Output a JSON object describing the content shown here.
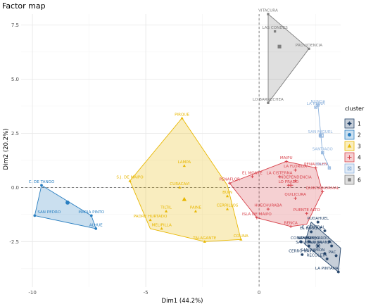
{
  "chart_data": {
    "type": "scatter",
    "title": "Factor map",
    "xlabel": "Dim1 (44.2%)",
    "ylabel": "Dim2 (20.2%)",
    "xlim": [
      -10.5,
      3.6
    ],
    "ylim": [
      -4.6,
      8.0
    ],
    "x_ticks": [
      -10,
      -5,
      0
    ],
    "x_tick_labels": [
      "-10",
      "-5",
      "0"
    ],
    "y_ticks": [
      -2.5,
      0.0,
      2.5,
      5.0,
      7.5
    ],
    "y_tick_labels": [
      "-2.5",
      "0.0",
      "2.5",
      "5.0",
      "7.5"
    ],
    "grid": true,
    "legend": {
      "title": "cluster",
      "position": "right"
    },
    "clusters": [
      {
        "name": "1",
        "color": "#1f3f66",
        "centroid": [
          2.6,
          -2.7
        ],
        "hull": [
          [
            2.3,
            -1.6
          ],
          [
            3.6,
            -2.8
          ],
          [
            3.5,
            -3.9
          ],
          [
            2.0,
            -2.6
          ]
        ],
        "points": [
          {
            "label": "PUDAHUEL",
            "x": 2.6,
            "y": -1.6
          },
          {
            "label": "EL BOSQUE",
            "x": 2.3,
            "y": -2.05
          },
          {
            "label": "E. CENTRAL",
            "x": 2.9,
            "y": -2.0
          },
          {
            "label": "CONCHALI",
            "x": 1.85,
            "y": -2.5
          },
          {
            "label": "LO ESPEJO",
            "x": 2.2,
            "y": -2.5
          },
          {
            "label": "SAN BERNARDO",
            "x": 3.1,
            "y": -2.5
          },
          {
            "label": "SAN JOAQUIN",
            "x": 2.2,
            "y": -2.7
          },
          {
            "label": "LA GRANJA",
            "x": 3.2,
            "y": -2.7
          },
          {
            "label": "CERRO NAVIA",
            "x": 1.9,
            "y": -3.1
          },
          {
            "label": "SAN RAMON",
            "x": 2.9,
            "y": -3.05
          },
          {
            "label": "PAC",
            "x": 3.4,
            "y": -3.15
          },
          {
            "label": "RECOLETA",
            "x": 3.0,
            "y": -3.3
          },
          {
            "label": "LA PINTANA",
            "x": 3.5,
            "y": -3.9
          }
        ]
      },
      {
        "name": "2",
        "color": "#2a7fc1",
        "centroid": [
          -8.45,
          -0.7
        ],
        "hull": [
          [
            -9.6,
            0.1
          ],
          [
            -7.4,
            -1.3
          ],
          [
            -7.2,
            -1.9
          ],
          [
            -9.9,
            -1.3
          ]
        ],
        "points": [
          {
            "label": "C. DE TANGO",
            "x": -9.6,
            "y": 0.1
          },
          {
            "label": "SAN PEDRO",
            "x": -9.9,
            "y": -1.3
          },
          {
            "label": "MARIA PINTO",
            "x": -7.4,
            "y": -1.3
          },
          {
            "label": "ALHUE",
            "x": -7.2,
            "y": -1.9
          }
        ]
      },
      {
        "name": "3",
        "color": "#e8b700",
        "centroid": [
          -3.3,
          -0.55
        ],
        "hull": [
          [
            -3.4,
            3.2
          ],
          [
            -1.4,
            0.1
          ],
          [
            -0.8,
            -2.4
          ],
          [
            -2.4,
            -2.5
          ],
          [
            -4.8,
            -1.9
          ],
          [
            -5.7,
            0.3
          ]
        ],
        "points": [
          {
            "label": "PIRQUE",
            "x": -3.4,
            "y": 3.2
          },
          {
            "label": "LAMPA",
            "x": -3.3,
            "y": 1.0
          },
          {
            "label": "S.J. DE MAIPO",
            "x": -5.7,
            "y": 0.3
          },
          {
            "label": "CURACAVI",
            "x": -3.5,
            "y": 0.0
          },
          {
            "label": "BUIN",
            "x": -1.4,
            "y": -0.4
          },
          {
            "label": "TILTIL",
            "x": -4.1,
            "y": -1.1
          },
          {
            "label": "PAINE",
            "x": -2.8,
            "y": -1.1
          },
          {
            "label": "CERRILLOS",
            "x": -1.4,
            "y": -1.0
          },
          {
            "label": "PADRE HURTADO",
            "x": -4.8,
            "y": -1.5
          },
          {
            "label": "MELIPILLA",
            "x": -4.3,
            "y": -1.9
          },
          {
            "label": "TALAGANTE",
            "x": -2.4,
            "y": -2.5
          },
          {
            "label": "COLINA",
            "x": -0.8,
            "y": -2.4
          }
        ]
      },
      {
        "name": "4",
        "color": "#d8434c",
        "centroid": [
          1.4,
          0.1
        ],
        "hull": [
          [
            1.2,
            1.2
          ],
          [
            2.5,
            0.9
          ],
          [
            2.8,
            -0.2
          ],
          [
            2.1,
            -1.7
          ],
          [
            1.4,
            -1.8
          ],
          [
            -0.1,
            -1.4
          ],
          [
            -1.3,
            0.2
          ]
        ],
        "points": [
          {
            "label": "MAIPU",
            "x": 1.2,
            "y": 1.2
          },
          {
            "label": "EL MONTE",
            "x": -0.3,
            "y": 0.5
          },
          {
            "label": "LA FLORIDA",
            "x": 1.6,
            "y": 0.8
          },
          {
            "label": "PENALOLEN",
            "x": 2.5,
            "y": 0.9
          },
          {
            "label": "LA CISTERNA",
            "x": 0.9,
            "y": 0.5
          },
          {
            "label": "PENAFLOR",
            "x": -1.3,
            "y": 0.2
          },
          {
            "label": "INDEPENDENCIA",
            "x": 1.6,
            "y": 0.3
          },
          {
            "label": "LO PRADO",
            "x": 1.3,
            "y": 0.1
          },
          {
            "label": "QUINTA NORMAL",
            "x": 2.8,
            "y": -0.2
          },
          {
            "label": "QUILICURA",
            "x": 1.6,
            "y": -0.5
          },
          {
            "label": "HUECHURABA",
            "x": 0.4,
            "y": -1.0
          },
          {
            "label": "ISLA DE MAIPO",
            "x": -0.1,
            "y": -1.4
          },
          {
            "label": "PUENTE ALTO",
            "x": 2.1,
            "y": -1.2
          },
          {
            "label": "RENCA",
            "x": 1.4,
            "y": -1.8
          }
        ]
      },
      {
        "name": "5",
        "color": "#8fb3dd",
        "centroid": [
          2.75,
          2.4
        ],
        "hull": [
          [
            2.6,
            3.8
          ],
          [
            2.8,
            1.6
          ],
          [
            3.1,
            0.9
          ],
          [
            2.8,
            1.6
          ]
        ],
        "points": [
          {
            "label": "NUNOA",
            "x": 2.6,
            "y": 3.8
          },
          {
            "label": "LA REINA",
            "x": 2.5,
            "y": 3.7
          },
          {
            "label": "SAN MIGUEL",
            "x": 2.7,
            "y": 2.4
          },
          {
            "label": "SANTIAGO",
            "x": 2.8,
            "y": 1.6
          },
          {
            "label": "MACUL",
            "x": 3.1,
            "y": 0.9
          }
        ]
      },
      {
        "name": "6",
        "color": "#7f7f7f",
        "centroid": [
          0.9,
          6.5
        ],
        "hull": [
          [
            0.4,
            8.0
          ],
          [
            2.2,
            6.4
          ],
          [
            0.4,
            3.9
          ]
        ],
        "points": [
          {
            "label": "VITACURA",
            "x": 0.4,
            "y": 8.0
          },
          {
            "label": "LAS CONDES",
            "x": 0.7,
            "y": 7.2
          },
          {
            "label": "PROVIDENCIA",
            "x": 2.2,
            "y": 6.4
          },
          {
            "label": "LO BARNECHEA",
            "x": 0.4,
            "y": 3.9
          }
        ]
      }
    ]
  }
}
